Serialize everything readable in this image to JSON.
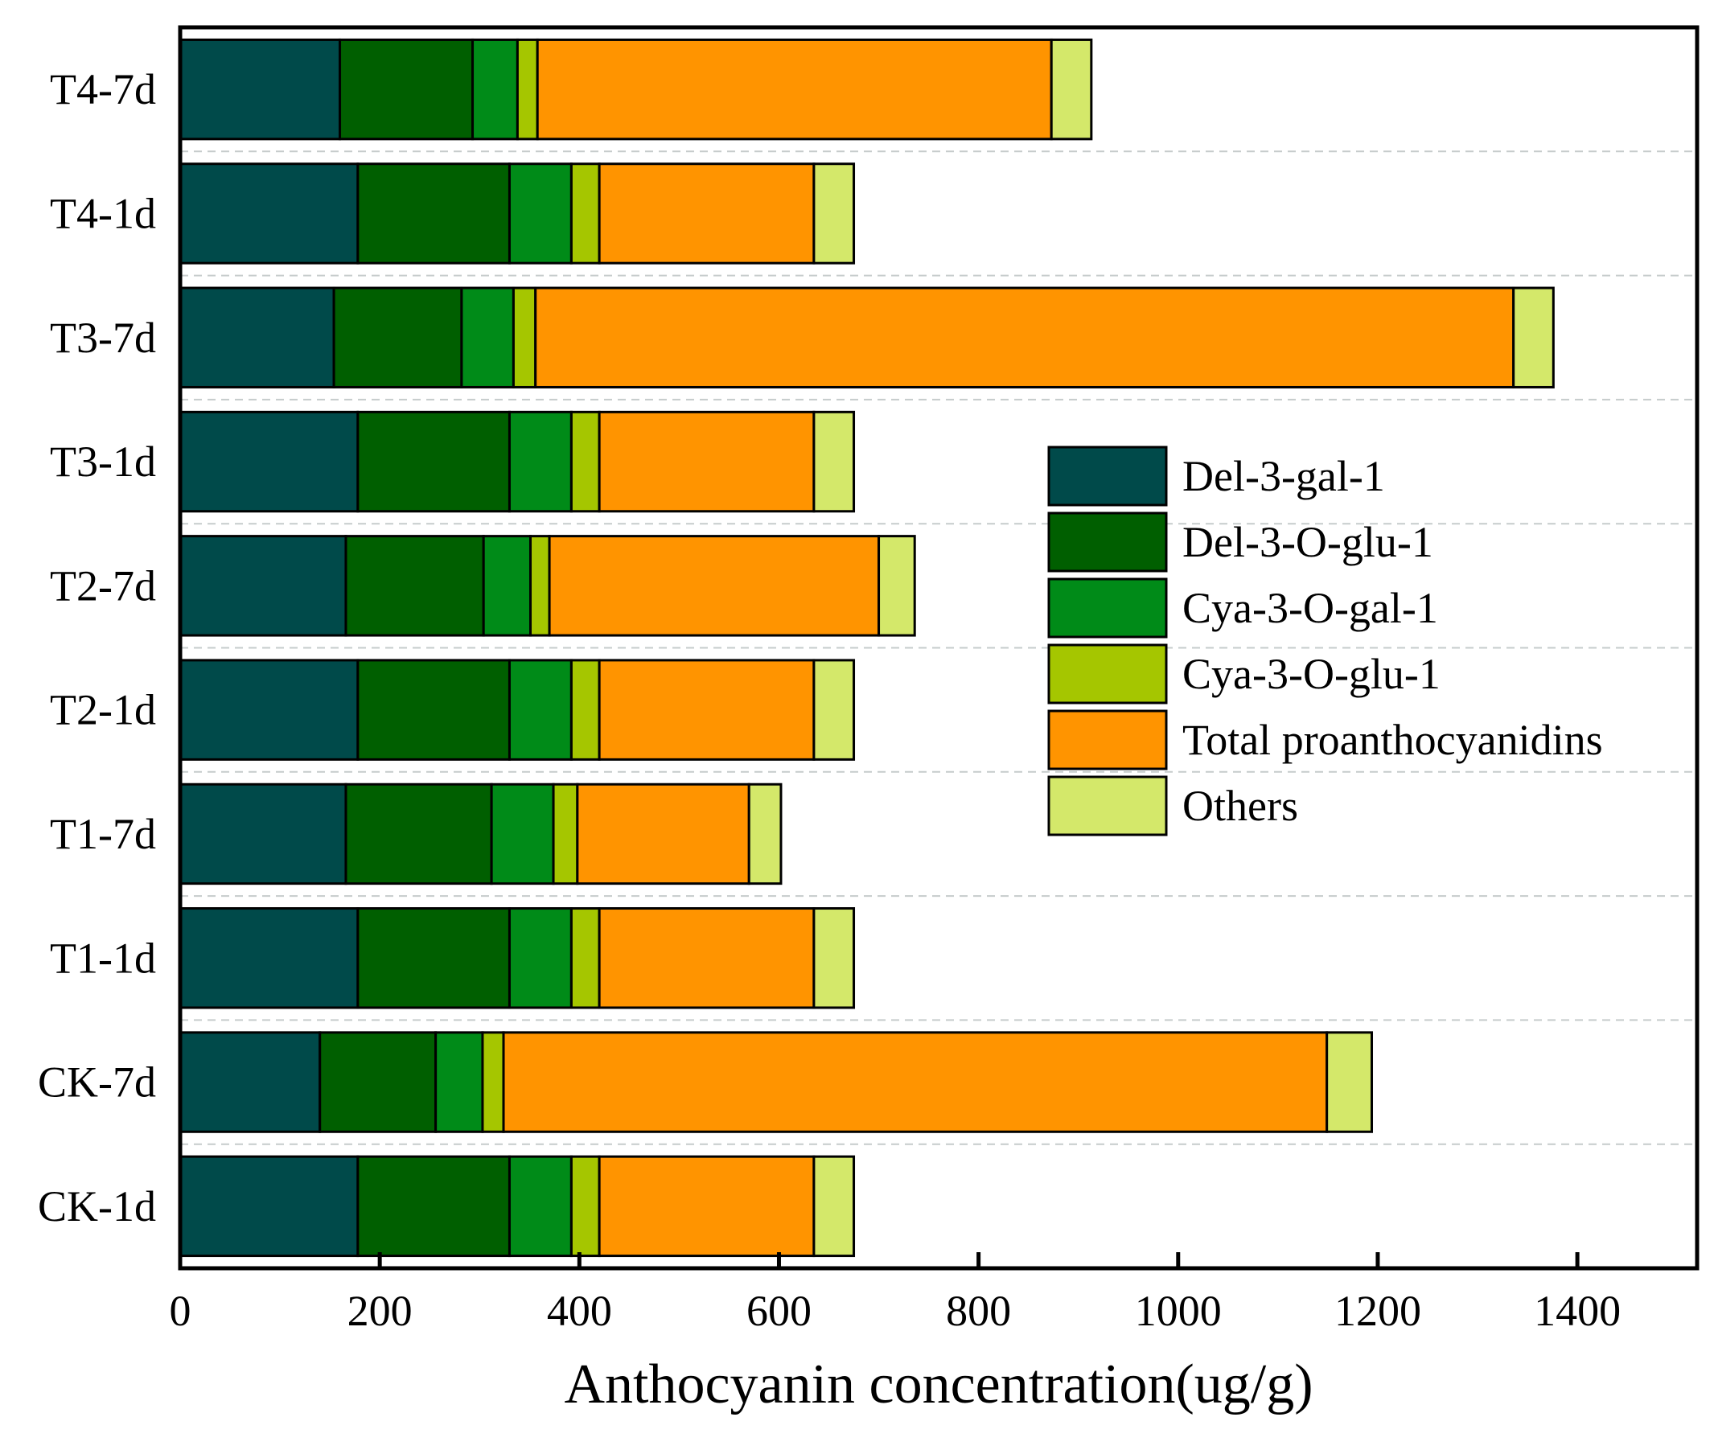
{
  "chart_data": {
    "type": "bar",
    "orientation": "horizontal",
    "stacked": true,
    "title": "",
    "xlabel": "Anthocyanin concentration(ug/g)",
    "ylabel": "",
    "xlim": [
      0,
      1520
    ],
    "xticks": [
      0,
      200,
      400,
      600,
      800,
      1000,
      1200,
      1400
    ],
    "grid": "horizontal dashed",
    "legend_position": "center-right",
    "categories": [
      "T4-7d",
      "T4-1d",
      "T3-7d",
      "T3-1d",
      "T2-7d",
      "T2-1d",
      "T1-7d",
      "T1-1d",
      "CK-7d",
      "CK-1d"
    ],
    "series": [
      {
        "name": "Del-3-gal-1",
        "color": "#004a4a",
        "values": [
          160,
          178,
          154,
          178,
          166,
          178,
          166,
          178,
          140,
          178
        ]
      },
      {
        "name": "Del-3-O-glu-1",
        "color": "#005f00",
        "values": [
          133,
          152,
          128,
          152,
          138,
          152,
          146,
          152,
          116,
          152
        ]
      },
      {
        "name": "Cya-3-O-gal-1",
        "color": "#008b18",
        "values": [
          45,
          62,
          52,
          62,
          47,
          62,
          62,
          62,
          47,
          62
        ]
      },
      {
        "name": "Cya-3-O-glu-1",
        "color": "#a5c600",
        "values": [
          20,
          28,
          22,
          28,
          19,
          28,
          24,
          28,
          21,
          28
        ]
      },
      {
        "name": "Total proanthocyanidins",
        "color": "#ff9400",
        "values": [
          515,
          215,
          980,
          215,
          330,
          215,
          172,
          215,
          825,
          215
        ]
      },
      {
        "name": "Others",
        "color": "#d4e86a",
        "values": [
          40,
          40,
          40,
          40,
          36,
          40,
          32,
          40,
          45,
          40
        ]
      }
    ]
  }
}
